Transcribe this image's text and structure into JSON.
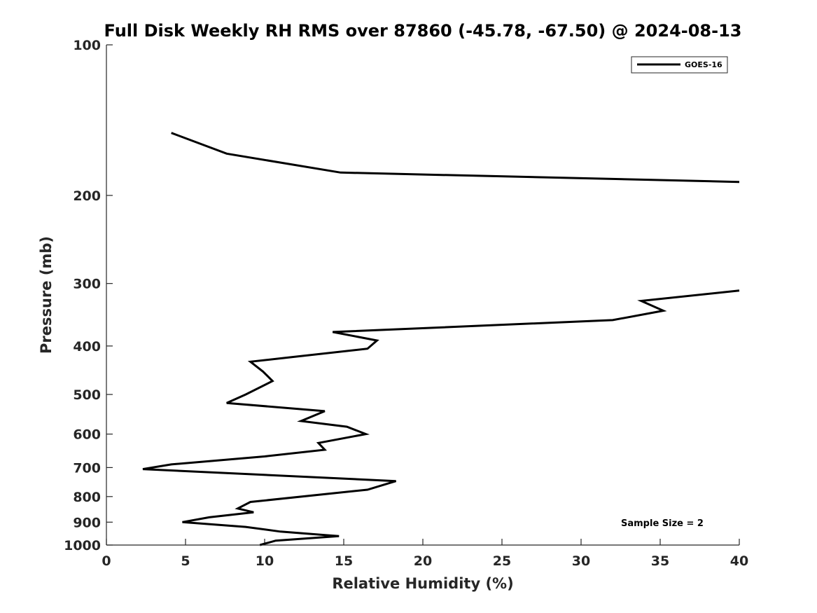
{
  "chart_data": {
    "type": "line",
    "title": "Full Disk Weekly RH RMS over 87860 (-45.78, -67.50) @ 2024-08-13",
    "xlabel": "Relative Humidity (%)",
    "ylabel": "Pressure (mb)",
    "xlim": [
      0,
      40
    ],
    "ylim": [
      100,
      1000
    ],
    "y_scale": "log",
    "y_reversed": true,
    "x_ticks": [
      "0",
      "5",
      "10",
      "15",
      "20",
      "25",
      "30",
      "35",
      "40"
    ],
    "y_ticks": [
      "100",
      "200",
      "300",
      "400",
      "500",
      "600",
      "700",
      "800",
      "900",
      "1000"
    ],
    "grid": false,
    "legend_position": "top-right",
    "line_color": "#000000",
    "series": [
      {
        "name": "GOES-16",
        "points": [
          {
            "x": 4.1,
            "y": 150
          },
          {
            "x": 7.6,
            "y": 165
          },
          {
            "x": 14.8,
            "y": 180
          },
          {
            "x": 40.0,
            "y": 188
          },
          {
            "x": null,
            "y": null
          },
          {
            "x": 40.0,
            "y": 310
          },
          {
            "x": 33.8,
            "y": 325
          },
          {
            "x": 35.2,
            "y": 340
          },
          {
            "x": 32.0,
            "y": 355
          },
          {
            "x": 14.3,
            "y": 375
          },
          {
            "x": 17.1,
            "y": 390
          },
          {
            "x": 16.5,
            "y": 405
          },
          {
            "x": 9.1,
            "y": 430
          },
          {
            "x": 9.9,
            "y": 450
          },
          {
            "x": 10.5,
            "y": 470
          },
          {
            "x": 8.8,
            "y": 500
          },
          {
            "x": 7.6,
            "y": 520
          },
          {
            "x": 13.8,
            "y": 540
          },
          {
            "x": 12.3,
            "y": 565
          },
          {
            "x": 15.2,
            "y": 580
          },
          {
            "x": 16.4,
            "y": 600
          },
          {
            "x": 13.4,
            "y": 625
          },
          {
            "x": 13.8,
            "y": 645
          },
          {
            "x": 10.0,
            "y": 665
          },
          {
            "x": 4.1,
            "y": 690
          },
          {
            "x": 2.3,
            "y": 705
          },
          {
            "x": 18.3,
            "y": 745
          },
          {
            "x": 16.5,
            "y": 775
          },
          {
            "x": 9.1,
            "y": 820
          },
          {
            "x": 8.3,
            "y": 845
          },
          {
            "x": 9.3,
            "y": 860
          },
          {
            "x": 6.5,
            "y": 880
          },
          {
            "x": 4.8,
            "y": 900
          },
          {
            "x": 8.8,
            "y": 920
          },
          {
            "x": 11.0,
            "y": 940
          },
          {
            "x": 14.7,
            "y": 960
          },
          {
            "x": 10.7,
            "y": 980
          },
          {
            "x": 9.7,
            "y": 1000
          }
        ]
      }
    ],
    "annotation": "Sample Size = 2"
  }
}
